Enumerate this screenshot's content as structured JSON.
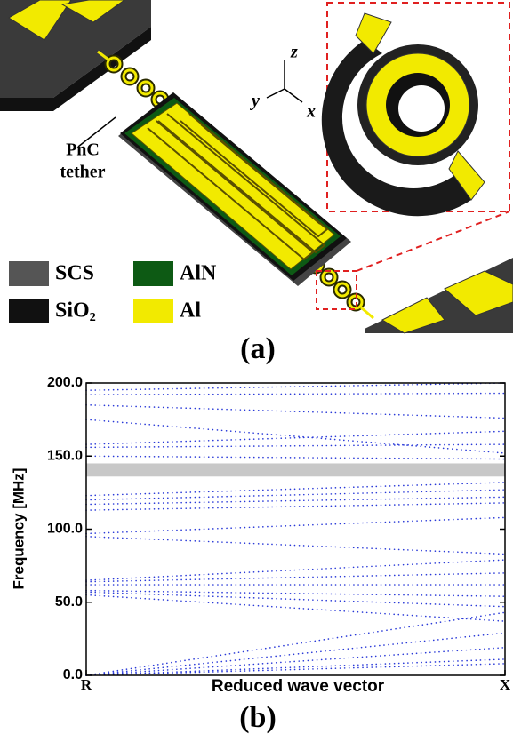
{
  "figure_a": {
    "annotation_lines": [
      "PnC",
      "tether"
    ],
    "axes": [
      "z",
      "y",
      "x"
    ],
    "legend": [
      "SCS",
      "AlN",
      "SiO₂",
      "Al"
    ],
    "panel_label": "(a)"
  },
  "chart_data": {
    "type": "scatter",
    "panel_label": "(b)",
    "xlabel": "Reduced wave vector",
    "ylabel": "Frequency [MHz]",
    "xlim": [
      0,
      1
    ],
    "xticks": [
      {
        "value": 0,
        "label": "R"
      },
      {
        "value": 1,
        "label": "X"
      }
    ],
    "ylim": [
      0,
      200
    ],
    "yticks": [
      {
        "value": 0,
        "label": "0.0"
      },
      {
        "value": 50,
        "label": "50.0"
      },
      {
        "value": 100,
        "label": "100.0"
      },
      {
        "value": 150,
        "label": "150.0"
      },
      {
        "value": 200,
        "label": "200.0"
      }
    ],
    "bandgap": [
      136,
      145
    ],
    "color": "#2a3ad8",
    "x": [
      0,
      0.1,
      0.2,
      0.3,
      0.4,
      0.5,
      0.6,
      0.7,
      0.8,
      0.9,
      1
    ],
    "series": [
      {
        "values": [
          0,
          0.8,
          1.6,
          2.4,
          3.2,
          4,
          4.8,
          5.6,
          6.4,
          7.2,
          8
        ]
      },
      {
        "values": [
          0,
          1.1,
          2.2,
          3.3,
          4.4,
          5.5,
          6.6,
          7.7,
          8.8,
          9.9,
          11
        ]
      },
      {
        "values": [
          0,
          1.9,
          3.8,
          5.7,
          7.6,
          9.5,
          11.4,
          13.3,
          15.2,
          17.1,
          19
        ]
      },
      {
        "values": [
          0,
          2.9,
          5.8,
          8.7,
          11.6,
          14.5,
          17.4,
          20.3,
          23.2,
          26.1,
          29
        ]
      },
      {
        "values": [
          0,
          4.3,
          8.6,
          12.9,
          17.2,
          21.5,
          25.8,
          30.1,
          34.4,
          38.7,
          43
        ]
      },
      {
        "values": [
          55,
          53.2,
          51.4,
          49.6,
          47.8,
          46,
          44.2,
          42.4,
          40.6,
          38.8,
          37
        ]
      },
      {
        "values": [
          57,
          56,
          55,
          54,
          53,
          52,
          51,
          50,
          49,
          48,
          47
        ]
      },
      {
        "values": [
          58,
          57.6,
          57.2,
          56.8,
          56.4,
          56,
          55.6,
          55.2,
          54.8,
          54.4,
          54
        ]
      },
      {
        "values": [
          62,
          62,
          62,
          62,
          62,
          62,
          62,
          62,
          62,
          62,
          62
        ]
      },
      {
        "values": [
          64,
          64.6,
          65.2,
          65.8,
          66.4,
          67,
          67.6,
          68.2,
          68.8,
          69.4,
          70
        ]
      },
      {
        "values": [
          65,
          66.4,
          67.8,
          69.2,
          70.6,
          72,
          73.4,
          74.8,
          76.2,
          77.6,
          79
        ]
      },
      {
        "values": [
          95,
          93.8,
          92.6,
          91.4,
          90.2,
          89,
          87.8,
          86.6,
          85.4,
          84.2,
          83
        ]
      },
      {
        "values": [
          97,
          98.1,
          99.2,
          100.3,
          101.4,
          102.5,
          103.6,
          104.7,
          105.8,
          106.9,
          108
        ]
      },
      {
        "values": [
          113,
          113.5,
          114,
          114.5,
          115,
          115.5,
          116,
          116.5,
          117,
          117.5,
          118
        ]
      },
      {
        "values": [
          117,
          117.5,
          118,
          118.5,
          119,
          119.5,
          120,
          120.5,
          121,
          121.5,
          122
        ]
      },
      {
        "values": [
          120,
          120.7,
          121.4,
          122.1,
          122.8,
          123.5,
          124.2,
          124.9,
          125.6,
          126.3,
          127
        ]
      },
      {
        "values": [
          123,
          123.9,
          124.8,
          125.7,
          126.6,
          127.5,
          128.4,
          129.3,
          130.2,
          131.1,
          132
        ]
      },
      {
        "values": [
          150,
          149.8,
          149.6,
          149.4,
          149.2,
          149,
          148.8,
          148.6,
          148.4,
          148.2,
          148
        ]
      },
      {
        "values": [
          156,
          156.2,
          156.4,
          156.6,
          156.8,
          157,
          157.2,
          157.4,
          157.6,
          157.8,
          158
        ]
      },
      {
        "values": [
          158,
          158.9,
          159.8,
          160.7,
          161.6,
          162.5,
          163.4,
          164.3,
          165.2,
          166.1,
          167
        ]
      },
      {
        "values": [
          175,
          172.7,
          170.4,
          168.1,
          165.8,
          163.5,
          161.2,
          158.9,
          156.6,
          154.3,
          152
        ]
      },
      {
        "values": [
          185,
          184.1,
          183.2,
          182.3,
          181.4,
          180.5,
          179.6,
          178.7,
          177.8,
          176.9,
          176
        ]
      },
      {
        "values": [
          192,
          192.1,
          192.2,
          192.3,
          192.4,
          192.5,
          192.6,
          192.7,
          192.8,
          192.9,
          193
        ]
      },
      {
        "values": [
          195,
          195.5,
          196,
          196.5,
          197,
          197.5,
          198,
          198.5,
          199,
          199.5,
          200
        ]
      }
    ]
  }
}
